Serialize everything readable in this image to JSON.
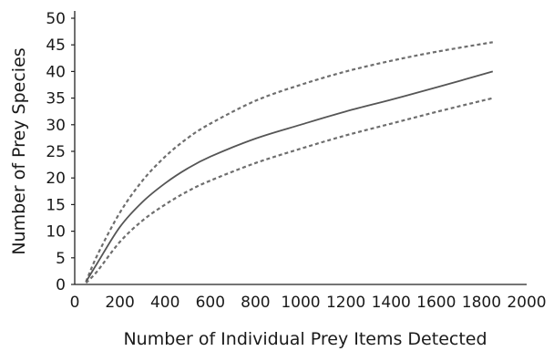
{
  "chart_data": {
    "type": "line",
    "title": "",
    "xlabel": "Number of Individual Prey Items Detected",
    "ylabel": "Number of Prey Species",
    "xlim": [
      0,
      2000
    ],
    "ylim": [
      0,
      50
    ],
    "xticks": [
      0,
      200,
      400,
      600,
      800,
      1000,
      1200,
      1400,
      1600,
      1800,
      2000
    ],
    "yticks": [
      0,
      5,
      10,
      15,
      20,
      25,
      30,
      35,
      40,
      45,
      50
    ],
    "grid": false,
    "legend": "none",
    "series": [
      {
        "style": "dashed",
        "color": "#6e6e6e",
        "x": [
          50,
          100,
          200,
          300,
          400,
          500,
          600,
          800,
          1000,
          1200,
          1400,
          1600,
          1850
        ],
        "y": [
          0.5,
          5.5,
          13.5,
          19.5,
          24.0,
          27.5,
          30.2,
          34.5,
          37.5,
          40.0,
          42.0,
          43.7,
          45.5
        ]
      },
      {
        "style": "solid",
        "color": "#555555",
        "x": [
          50,
          100,
          200,
          300,
          400,
          500,
          600,
          800,
          1000,
          1200,
          1400,
          1600,
          1850
        ],
        "y": [
          0.5,
          4.0,
          10.8,
          15.5,
          19.0,
          21.8,
          24.0,
          27.4,
          30.0,
          32.5,
          34.7,
          37.0,
          40.0
        ]
      },
      {
        "style": "dashed",
        "color": "#6e6e6e",
        "x": [
          50,
          100,
          200,
          300,
          400,
          500,
          600,
          800,
          1000,
          1200,
          1400,
          1600,
          1850
        ],
        "y": [
          0.3,
          2.5,
          8.0,
          12.0,
          15.0,
          17.5,
          19.5,
          22.8,
          25.5,
          28.0,
          30.2,
          32.4,
          35.0
        ]
      }
    ]
  }
}
